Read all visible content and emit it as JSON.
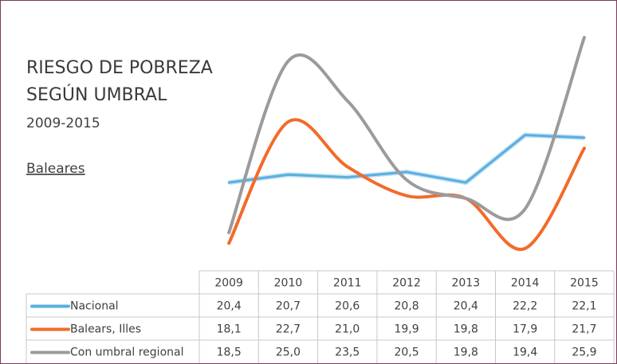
{
  "chart_data": {
    "type": "line",
    "title": [
      "RIESGO DE POBREZA",
      "SEGÚN UMBRAL"
    ],
    "subtitle": "2009-2015",
    "region": "Baleares",
    "categories": [
      "2009",
      "2010",
      "2011",
      "2012",
      "2013",
      "2014",
      "2015"
    ],
    "series": [
      {
        "name": "Nacional",
        "color": "#5aaee0",
        "smooth": false,
        "values": [
          20.4,
          20.7,
          20.6,
          20.8,
          20.4,
          22.2,
          22.1
        ],
        "value_labels": [
          "20,4",
          "20,7",
          "20,6",
          "20,8",
          "20,4",
          "22,2",
          "22,1"
        ]
      },
      {
        "name": "Balears, Illes",
        "color": "#f26b2a",
        "smooth": true,
        "values": [
          18.1,
          22.7,
          21.0,
          19.9,
          19.8,
          17.9,
          21.7
        ],
        "value_labels": [
          "18,1",
          "22,7",
          "21,0",
          "19,9",
          "19,8",
          "17,9",
          "21,7"
        ]
      },
      {
        "name": "Con umbral regional",
        "color": "#9b9b9b",
        "smooth": true,
        "values": [
          18.5,
          25.0,
          23.5,
          20.5,
          19.8,
          19.4,
          25.9
        ],
        "value_labels": [
          "18,5",
          "25,0",
          "23,5",
          "20,5",
          "19,8",
          "19,4",
          "25,9"
        ]
      }
    ]
  }
}
